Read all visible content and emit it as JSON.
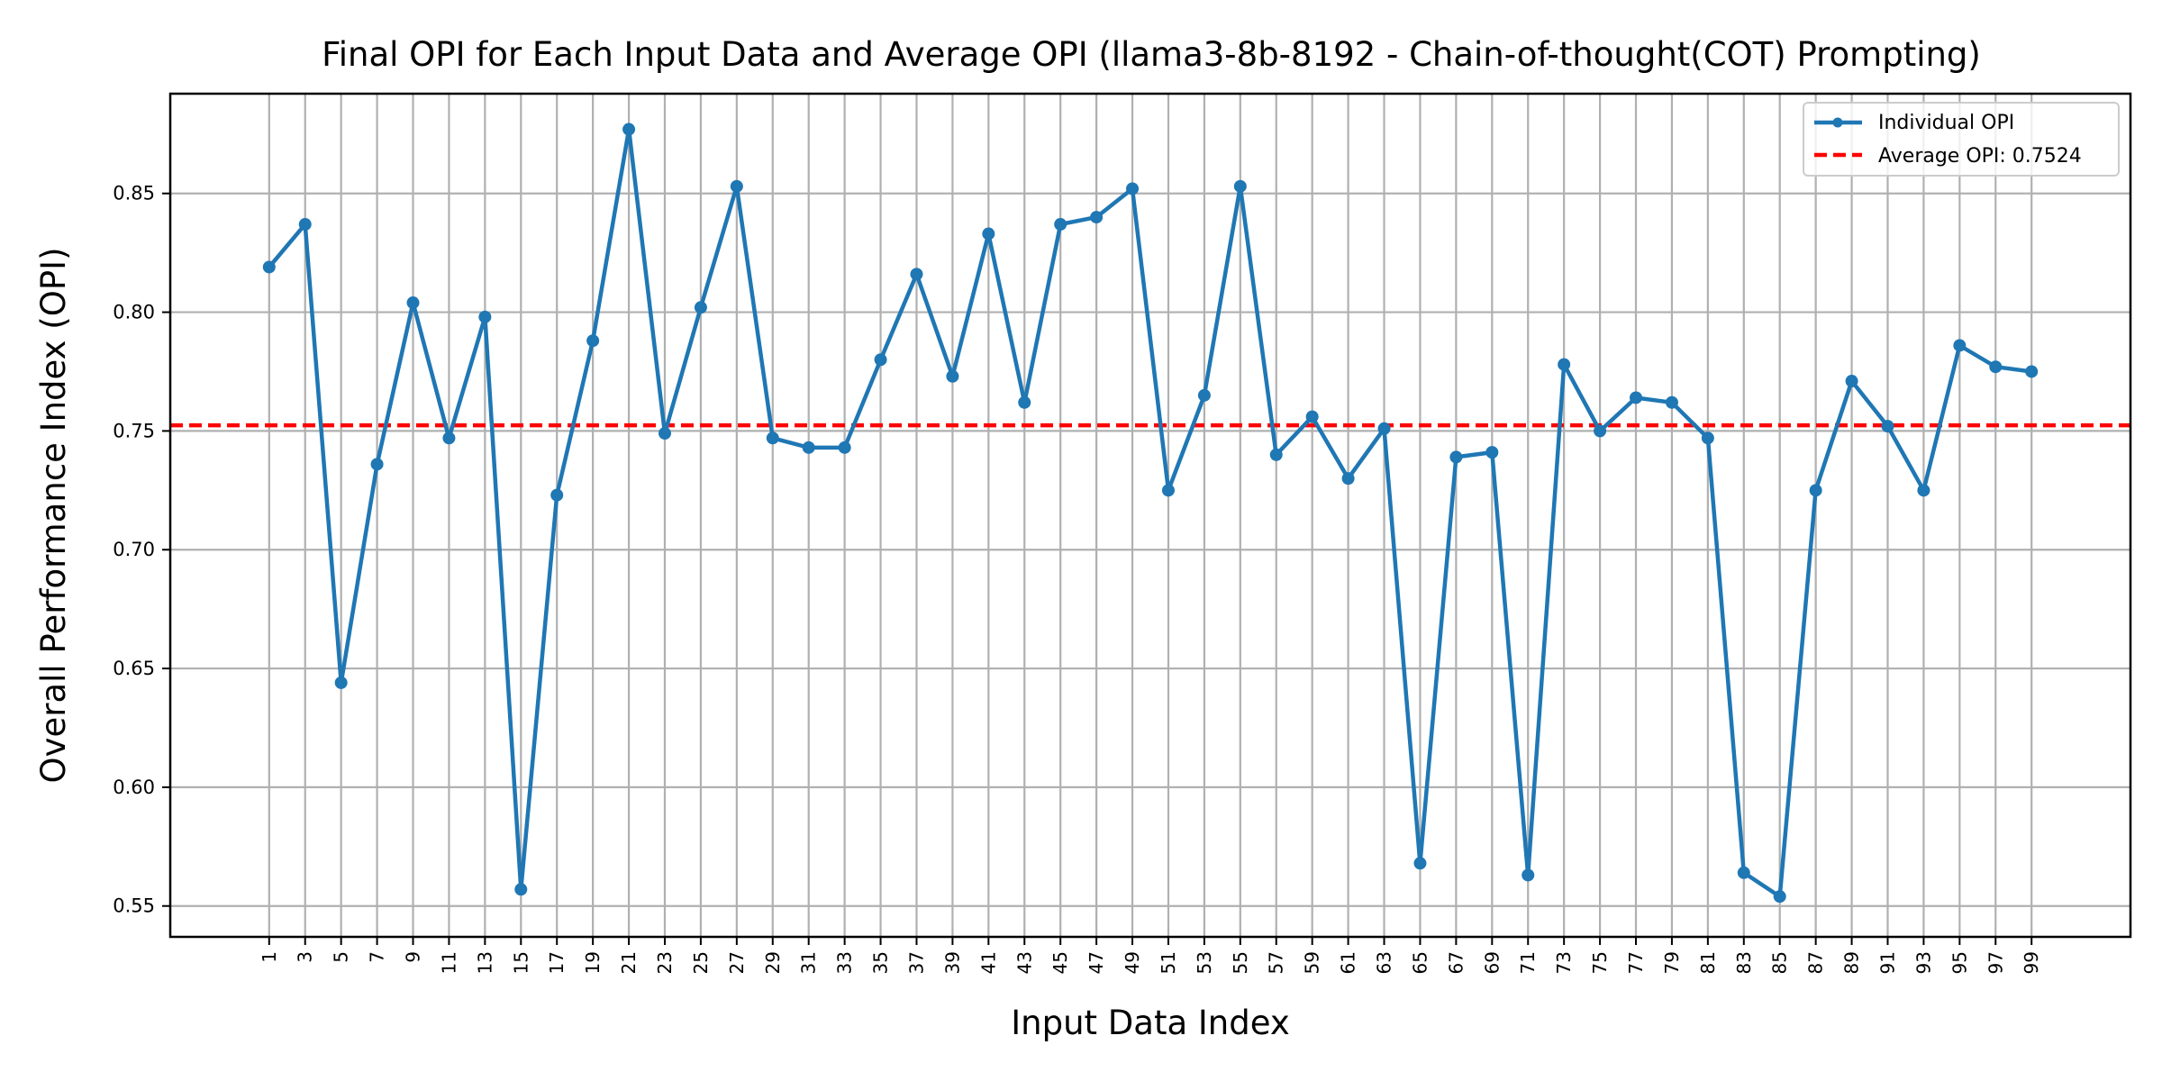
{
  "chart_data": {
    "type": "line",
    "title": "Final OPI for Each Input Data and Average OPI (llama3-8b-8192 - Chain-of-thought(COT) Prompting)",
    "xlabel": "Input Data Index",
    "ylabel": "Overall Performance Index (OPI)",
    "xlim": [
      -4.5,
      104.5
    ],
    "ylim": [
      0.537,
      0.892
    ],
    "x_ticks": [
      1,
      3,
      5,
      7,
      9,
      11,
      13,
      15,
      17,
      19,
      21,
      23,
      25,
      27,
      29,
      31,
      33,
      35,
      37,
      39,
      41,
      43,
      45,
      47,
      49,
      51,
      53,
      55,
      57,
      59,
      61,
      63,
      65,
      67,
      69,
      71,
      73,
      75,
      77,
      79,
      81,
      83,
      85,
      87,
      89,
      91,
      93,
      95,
      97,
      99
    ],
    "y_ticks": [
      0.55,
      0.6,
      0.65,
      0.7,
      0.75,
      0.8,
      0.85
    ],
    "y_tick_labels": [
      "0.55",
      "0.60",
      "0.65",
      "0.70",
      "0.75",
      "0.80",
      "0.85"
    ],
    "grid": true,
    "legend": {
      "position": "top-right",
      "entries": [
        "Individual OPI",
        "Average OPI: 0.7524"
      ]
    },
    "series": [
      {
        "name": "Individual OPI",
        "style": "line-with-markers",
        "color": "#1f77b4",
        "x": [
          1,
          3,
          5,
          7,
          9,
          11,
          13,
          15,
          17,
          19,
          21,
          23,
          25,
          27,
          29,
          31,
          33,
          35,
          37,
          39,
          41,
          43,
          45,
          47,
          49,
          51,
          53,
          55,
          57,
          59,
          61,
          63,
          65,
          67,
          69,
          71,
          73,
          75,
          77,
          79,
          81,
          83,
          85,
          87,
          89,
          91,
          93,
          95,
          97,
          99
        ],
        "values": [
          0.819,
          0.837,
          0.644,
          0.736,
          0.804,
          0.747,
          0.798,
          0.557,
          0.723,
          0.788,
          0.877,
          0.749,
          0.802,
          0.853,
          0.747,
          0.743,
          0.743,
          0.78,
          0.816,
          0.773,
          0.833,
          0.762,
          0.837,
          0.84,
          0.852,
          0.725,
          0.765,
          0.853,
          0.74,
          0.756,
          0.73,
          0.751,
          0.568,
          0.739,
          0.741,
          0.563,
          0.778,
          0.75,
          0.764,
          0.762,
          0.747,
          0.564,
          0.554,
          0.725,
          0.771,
          0.752,
          0.725,
          0.786,
          0.777,
          0.775
        ]
      },
      {
        "name": "Average OPI: 0.7524",
        "style": "dashed-horizontal",
        "color": "#ff0000",
        "value": 0.7524
      }
    ]
  }
}
